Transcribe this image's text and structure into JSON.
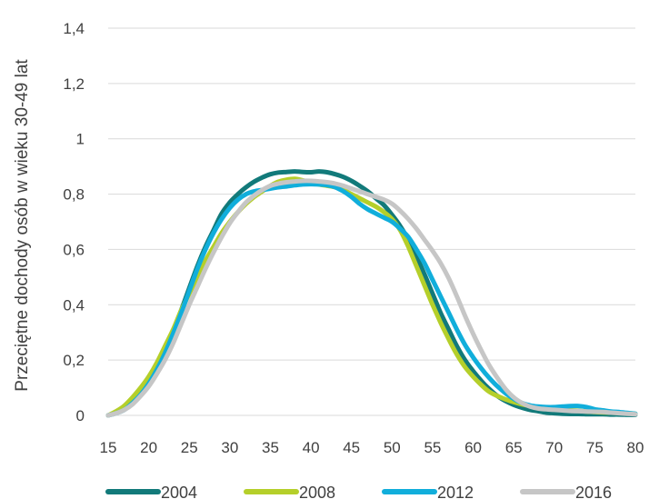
{
  "chart_data": {
    "type": "line",
    "title": "",
    "xlabel": "",
    "ylabel": "Przeciętne dochody osób w wieku 30-49 lat",
    "xlim": [
      15,
      80
    ],
    "ylim": [
      0,
      1.4
    ],
    "x_ticks": [
      "15",
      "20",
      "25",
      "30",
      "35",
      "40",
      "45",
      "50",
      "55",
      "60",
      "65",
      "70",
      "75",
      "80"
    ],
    "y_ticks": [
      "0",
      "0,2",
      "0,4",
      "0,6",
      "0,8",
      "1",
      "1,2",
      "1,4"
    ],
    "grid": "horizontal",
    "legend_position": "bottom",
    "x": [
      15,
      16,
      17,
      18,
      19,
      20,
      21,
      22,
      23,
      24,
      25,
      26,
      27,
      28,
      29,
      30,
      31,
      32,
      33,
      34,
      35,
      36,
      37,
      38,
      39,
      40,
      41,
      42,
      43,
      44,
      45,
      46,
      47,
      48,
      49,
      50,
      51,
      52,
      53,
      54,
      55,
      56,
      57,
      58,
      59,
      60,
      61,
      62,
      63,
      64,
      65,
      66,
      67,
      68,
      69,
      70,
      71,
      72,
      73,
      74,
      75,
      76,
      77,
      78,
      79,
      80
    ],
    "series": [
      {
        "name": "2004",
        "color": "#127a7a",
        "values": [
          0.0,
          0.01,
          0.025,
          0.05,
          0.08,
          0.12,
          0.17,
          0.23,
          0.3,
          0.38,
          0.46,
          0.54,
          0.61,
          0.67,
          0.73,
          0.77,
          0.8,
          0.825,
          0.845,
          0.86,
          0.872,
          0.878,
          0.88,
          0.882,
          0.88,
          0.879,
          0.882,
          0.879,
          0.872,
          0.862,
          0.848,
          0.83,
          0.81,
          0.785,
          0.76,
          0.725,
          0.685,
          0.635,
          0.575,
          0.51,
          0.44,
          0.37,
          0.31,
          0.25,
          0.2,
          0.16,
          0.125,
          0.095,
          0.07,
          0.052,
          0.038,
          0.028,
          0.02,
          0.015,
          0.01,
          0.008,
          0.006,
          0.005,
          0.005,
          0.004,
          0.004,
          0.004,
          0.003,
          0.003,
          0.002,
          0.002
        ]
      },
      {
        "name": "2008",
        "color": "#b5cf2a",
        "values": [
          0.0,
          0.015,
          0.035,
          0.065,
          0.1,
          0.14,
          0.19,
          0.25,
          0.31,
          0.38,
          0.44,
          0.5,
          0.56,
          0.61,
          0.66,
          0.7,
          0.735,
          0.765,
          0.79,
          0.81,
          0.83,
          0.845,
          0.852,
          0.855,
          0.85,
          0.842,
          0.835,
          0.83,
          0.825,
          0.815,
          0.8,
          0.785,
          0.77,
          0.755,
          0.735,
          0.71,
          0.67,
          0.61,
          0.54,
          0.47,
          0.4,
          0.335,
          0.275,
          0.22,
          0.175,
          0.14,
          0.11,
          0.085,
          0.07,
          0.058,
          0.048,
          0.04,
          0.034,
          0.03,
          0.026,
          0.022,
          0.02,
          0.018,
          0.016,
          0.014,
          0.012,
          0.011,
          0.01,
          0.009,
          0.008,
          0.006
        ]
      },
      {
        "name": "2012",
        "color": "#11aedb",
        "values": [
          0.0,
          0.008,
          0.02,
          0.045,
          0.075,
          0.115,
          0.165,
          0.225,
          0.295,
          0.37,
          0.45,
          0.53,
          0.6,
          0.66,
          0.71,
          0.75,
          0.78,
          0.8,
          0.81,
          0.815,
          0.82,
          0.825,
          0.828,
          0.832,
          0.835,
          0.836,
          0.835,
          0.832,
          0.825,
          0.81,
          0.79,
          0.765,
          0.745,
          0.73,
          0.715,
          0.7,
          0.675,
          0.645,
          0.6,
          0.55,
          0.49,
          0.43,
          0.37,
          0.31,
          0.255,
          0.21,
          0.17,
          0.135,
          0.105,
          0.08,
          0.06,
          0.045,
          0.036,
          0.032,
          0.03,
          0.03,
          0.032,
          0.034,
          0.034,
          0.03,
          0.022,
          0.018,
          0.014,
          0.012,
          0.009,
          0.006
        ]
      },
      {
        "name": "2016",
        "color": "#c6c6c6",
        "values": [
          0.0,
          0.008,
          0.02,
          0.04,
          0.07,
          0.105,
          0.15,
          0.2,
          0.26,
          0.33,
          0.4,
          0.465,
          0.53,
          0.59,
          0.645,
          0.695,
          0.735,
          0.77,
          0.795,
          0.815,
          0.83,
          0.838,
          0.843,
          0.846,
          0.848,
          0.848,
          0.846,
          0.843,
          0.838,
          0.83,
          0.82,
          0.81,
          0.8,
          0.79,
          0.78,
          0.765,
          0.74,
          0.71,
          0.675,
          0.635,
          0.595,
          0.55,
          0.495,
          0.43,
          0.36,
          0.295,
          0.235,
          0.18,
          0.135,
          0.095,
          0.065,
          0.045,
          0.032,
          0.025,
          0.022,
          0.02,
          0.018,
          0.016,
          0.015,
          0.014,
          0.013,
          0.012,
          0.01,
          0.008,
          0.006,
          0.004
        ]
      }
    ]
  }
}
